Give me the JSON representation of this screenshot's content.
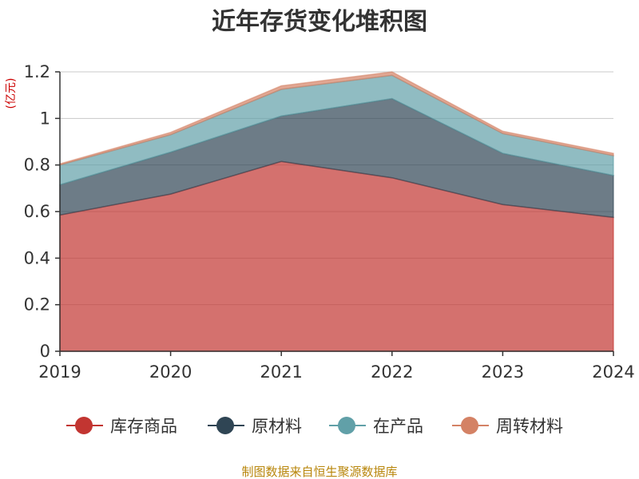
{
  "chart_data": {
    "type": "area",
    "title": "近年存货变化堆积图",
    "unit_label": "(亿元)",
    "categories": [
      "2019",
      "2020",
      "2021",
      "2022",
      "2023",
      "2024"
    ],
    "stacked": true,
    "ylim": [
      0,
      1.2
    ],
    "yticks": [
      0,
      0.2,
      0.4,
      0.6,
      0.8,
      1,
      1.2
    ],
    "ytick_labels": [
      "0",
      "0.2",
      "0.4",
      "0.6",
      "0.8",
      "1",
      "1.2"
    ],
    "grid": true,
    "legend_position": "bottom",
    "series": [
      {
        "name": "库存商品",
        "color": "#c23531",
        "values": [
          0.585,
          0.675,
          0.815,
          0.745,
          0.63,
          0.575
        ]
      },
      {
        "name": "原材料",
        "color": "#2f4554",
        "values": [
          0.13,
          0.18,
          0.195,
          0.34,
          0.22,
          0.18
        ]
      },
      {
        "name": "在产品",
        "color": "#61a0a8",
        "values": [
          0.085,
          0.075,
          0.115,
          0.1,
          0.085,
          0.085
        ]
      },
      {
        "name": "周转材料",
        "color": "#d48265",
        "values": [
          0.005,
          0.01,
          0.015,
          0.015,
          0.01,
          0.01
        ]
      }
    ]
  },
  "footer": {
    "source": "制图数据来自恒生聚源数据库"
  }
}
